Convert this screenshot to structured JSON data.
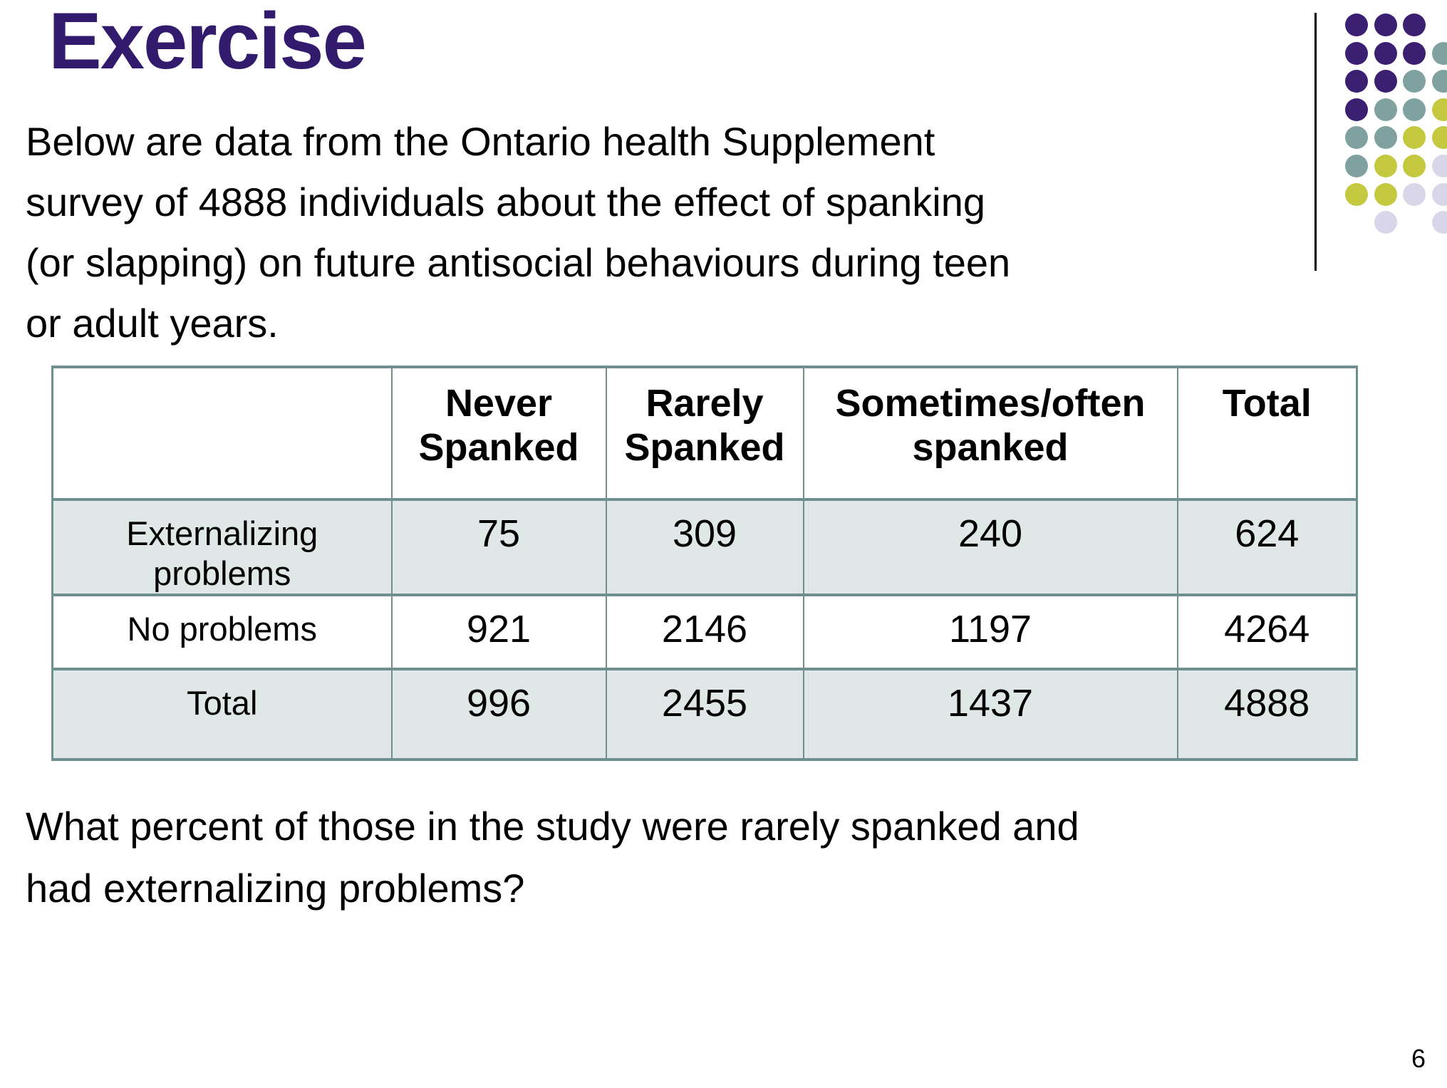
{
  "slide": {
    "title": "Exercise",
    "intro_lines": [
      "Below are data from the Ontario health Supplement",
      "survey of 4888 individuals about the effect of spanking",
      "(or slapping) on future antisocial behaviours during teen",
      "or adult years."
    ],
    "question_lines": [
      "What percent of those in the study were rarely spanked and",
      "had externalizing problems?"
    ],
    "page_number": "6"
  },
  "table": {
    "col_headers": [
      "",
      "Never Spanked",
      "Rarely Spanked",
      "Sometimes/often spanked",
      "Total"
    ],
    "rows": [
      {
        "label": "Externalizing problems",
        "values": [
          "75",
          "309",
          "240",
          "624"
        ]
      },
      {
        "label": "No problems",
        "values": [
          "921",
          "2146",
          "1197",
          "4264"
        ]
      },
      {
        "label": "Total",
        "values": [
          "996",
          "2455",
          "1437",
          "4888"
        ]
      }
    ]
  },
  "decoration": {
    "dot_colors": {
      "p": "#3B1F70",
      "t": "#7FA1A0",
      "y": "#C5C93F",
      "l": "#D9D6E9"
    },
    "dot_grid": [
      [
        "p",
        "p",
        "p",
        ""
      ],
      [
        "p",
        "p",
        "p",
        "t"
      ],
      [
        "p",
        "p",
        "t",
        "t"
      ],
      [
        "p",
        "t",
        "t",
        "y"
      ],
      [
        "t",
        "t",
        "y",
        "y"
      ],
      [
        "t",
        "y",
        "y",
        "l"
      ],
      [
        "y",
        "y",
        "l",
        "l"
      ],
      [
        "",
        "l",
        "",
        "l"
      ]
    ]
  },
  "colors": {
    "title_text": "#321A6D",
    "table_border": "#6F908E",
    "row_shade": "#DFE7E7",
    "line": "#000000"
  }
}
